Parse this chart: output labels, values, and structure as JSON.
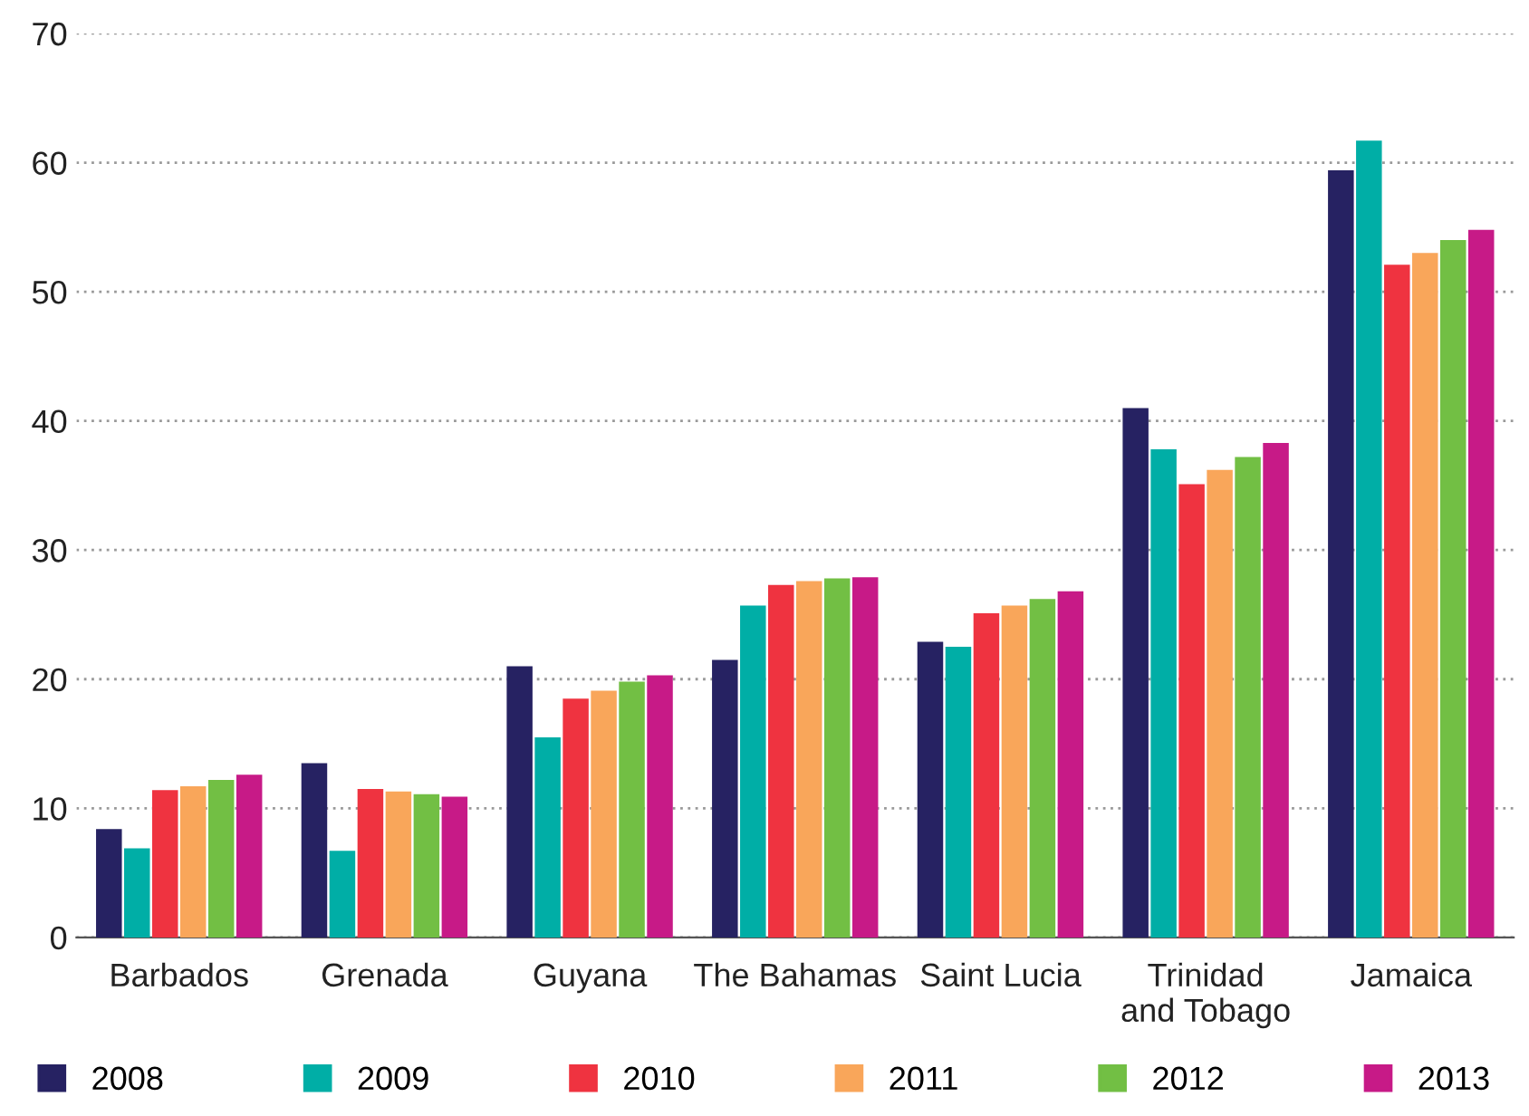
{
  "chart_data": {
    "type": "bar",
    "categories": [
      "Barbados",
      "Grenada",
      "Guyana",
      "The Bahamas",
      "Saint Lucia",
      "Trinidad\nand Tobago",
      "Jamaica"
    ],
    "series": [
      {
        "name": "2008",
        "color": "#262262",
        "values": [
          8.4,
          13.5,
          21.0,
          21.5,
          22.9,
          41.0,
          59.4
        ]
      },
      {
        "name": "2009",
        "color": "#00aea6",
        "values": [
          6.9,
          6.7,
          15.5,
          25.7,
          22.5,
          37.8,
          61.7
        ]
      },
      {
        "name": "2010",
        "color": "#ef3340",
        "values": [
          11.4,
          11.5,
          18.5,
          27.3,
          25.1,
          35.1,
          52.1
        ]
      },
      {
        "name": "2011",
        "color": "#f9a65a",
        "values": [
          11.7,
          11.3,
          19.1,
          27.6,
          25.7,
          36.2,
          53.0
        ]
      },
      {
        "name": "2012",
        "color": "#72bf44",
        "values": [
          12.2,
          11.1,
          19.8,
          27.8,
          26.2,
          37.2,
          54.0
        ]
      },
      {
        "name": "2013",
        "color": "#c71a87",
        "values": [
          12.6,
          10.9,
          20.3,
          27.9,
          26.8,
          38.3,
          54.8
        ]
      }
    ],
    "ylim": [
      0,
      70
    ],
    "yticks": [
      0,
      10,
      20,
      30,
      40,
      50,
      60,
      70
    ],
    "grid": "y",
    "legend": "bottom"
  }
}
